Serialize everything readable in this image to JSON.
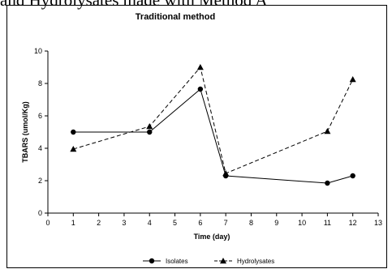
{
  "header_text": "and Hydrolysates made with Method A",
  "chart_data": {
    "type": "line",
    "title": "Traditional method",
    "xlabel": "Time (day)",
    "ylabel": "TBARS (umol/Kg)",
    "xlim": [
      0,
      13
    ],
    "ylim": [
      0,
      10
    ],
    "x_ticks": [
      0,
      1,
      2,
      3,
      4,
      5,
      6,
      7,
      8,
      9,
      10,
      11,
      12,
      13
    ],
    "y_ticks": [
      0,
      2,
      4,
      6,
      8,
      10
    ],
    "grid": false,
    "legend_position": "bottom",
    "series": [
      {
        "name": "Isolates",
        "marker": "circle",
        "line_style": "solid",
        "x": [
          1,
          4,
          6,
          7,
          11,
          12
        ],
        "y": [
          5.0,
          5.0,
          7.65,
          2.3,
          1.85,
          2.3
        ]
      },
      {
        "name": "Hydrolysates",
        "marker": "triangle",
        "line_style": "dashed",
        "x": [
          1,
          4,
          6,
          7,
          11,
          12
        ],
        "y": [
          3.95,
          5.35,
          9.0,
          2.45,
          5.05,
          8.25
        ]
      }
    ]
  }
}
